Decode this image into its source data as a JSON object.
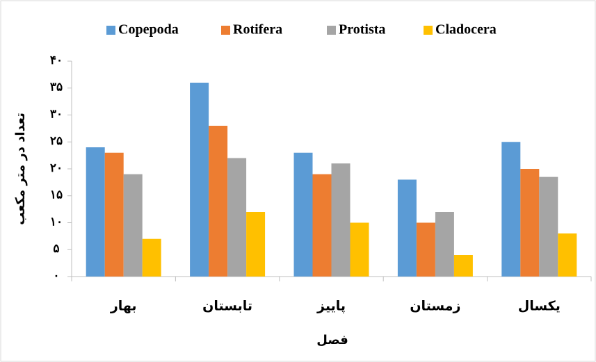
{
  "chart_data": {
    "type": "bar",
    "x_label": "فصل",
    "y_label": "تعداد در متر مکعب",
    "categories": [
      "بهار",
      "تابستان",
      "پاییز",
      "زمستان",
      "یکسال"
    ],
    "series": [
      {
        "name": "Copepoda",
        "color": "#5b9bd5",
        "values": [
          24,
          36,
          23,
          18,
          25
        ]
      },
      {
        "name": "Rotifera",
        "color": "#ed7d31",
        "values": [
          23,
          28,
          19,
          10,
          20
        ]
      },
      {
        "name": "Protista",
        "color": "#a5a5a5",
        "values": [
          19,
          22,
          21,
          12,
          18.5
        ]
      },
      {
        "name": "Cladocera",
        "color": "#ffc000",
        "values": [
          7,
          12,
          10,
          4,
          8
        ]
      }
    ],
    "ylim": [
      0,
      40
    ],
    "yticks": [
      {
        "value": 0,
        "label": "٠"
      },
      {
        "value": 5,
        "label": "۵"
      },
      {
        "value": 10,
        "label": "۱۰"
      },
      {
        "value": 15,
        "label": "۱۵"
      },
      {
        "value": 20,
        "label": "۲۰"
      },
      {
        "value": 25,
        "label": "۲۵"
      },
      {
        "value": 30,
        "label": "۳۰"
      },
      {
        "value": 35,
        "label": "۳۵"
      },
      {
        "value": 40,
        "label": "۴۰"
      }
    ],
    "legend": "top"
  }
}
